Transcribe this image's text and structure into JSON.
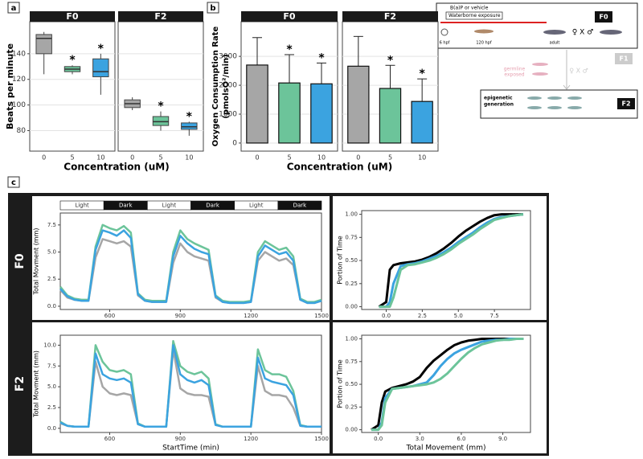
{
  "chart_data": [
    {
      "type": "box",
      "panel_label": "a",
      "facet": "F0",
      "ylabel": "Beats per minute",
      "xlabel": "Concentration (uM)",
      "categories": [
        "0",
        "5",
        "10"
      ],
      "colors": [
        "#a6a6a6",
        "#6cc49a",
        "#3ba3e0"
      ],
      "stats": [
        {
          "min": 124,
          "q1": 140,
          "median": 152,
          "q3": 155,
          "max": 157
        },
        {
          "min": 124,
          "q1": 126,
          "median": 128,
          "q3": 130,
          "max": 131
        },
        {
          "min": 108,
          "q1": 122,
          "median": 126,
          "q3": 136,
          "max": 140
        }
      ],
      "significance": [
        {
          "category": "5",
          "label": "*"
        },
        {
          "category": "10",
          "label": "*"
        }
      ],
      "ylim": [
        64,
        165
      ],
      "yticks": [
        80,
        100,
        120,
        140
      ],
      "grid": true
    },
    {
      "type": "box",
      "facet": "F2",
      "categories": [
        "0",
        "5",
        "10"
      ],
      "colors": [
        "#a6a6a6",
        "#6cc49a",
        "#3ba3e0"
      ],
      "stats": [
        {
          "min": 96,
          "q1": 98,
          "median": 101,
          "q3": 104,
          "max": 106
        },
        {
          "min": 80,
          "q1": 84,
          "median": 87,
          "q3": 91,
          "max": 95
        },
        {
          "min": 76,
          "q1": 81,
          "median": 83,
          "q3": 86,
          "max": 87
        }
      ],
      "significance": [
        {
          "category": "5",
          "label": "*"
        },
        {
          "category": "10",
          "label": "*"
        }
      ],
      "ylim": [
        64,
        165
      ],
      "grid": true
    },
    {
      "type": "bar",
      "panel_label": "b",
      "facet": "F0",
      "ylabel": [
        "Oxygen Consumption Rate",
        "(pmolsO²/min)"
      ],
      "xlabel": "Concentration (uM)",
      "categories": [
        "0",
        "5",
        "10"
      ],
      "colors": [
        "#a6a6a6",
        "#6cc49a",
        "#3ba3e0"
      ],
      "values": [
        2700,
        2080,
        2050
      ],
      "errors": [
        950,
        980,
        720
      ],
      "significance": [
        {
          "category": "5",
          "label": "*"
        },
        {
          "category": "10",
          "label": "*"
        }
      ],
      "ylim": [
        -280,
        4200
      ],
      "yticks": [
        0,
        1000,
        2000,
        3000
      ],
      "grid": true
    },
    {
      "type": "bar",
      "facet": "F2",
      "categories": [
        "0",
        "5",
        "10"
      ],
      "colors": [
        "#a6a6a6",
        "#6cc49a",
        "#3ba3e0"
      ],
      "values": [
        2660,
        1890,
        1440
      ],
      "errors": [
        1030,
        800,
        780
      ],
      "significance": [
        {
          "category": "5",
          "label": "*"
        },
        {
          "category": "10",
          "label": "*"
        }
      ],
      "ylim": [
        -280,
        4200
      ],
      "grid": true
    },
    {
      "type": "line",
      "panel_label": "c",
      "row": "F0",
      "phases": [
        "Light",
        "Dark",
        "Light",
        "Dark",
        "Light",
        "Dark"
      ],
      "ylabel": "Total Movment (mm)",
      "x": [
        390,
        420,
        450,
        480,
        510,
        540,
        570,
        600,
        630,
        660,
        690,
        720,
        750,
        780,
        810,
        840,
        870,
        900,
        930,
        960,
        990,
        1020,
        1050,
        1080,
        1110,
        1140,
        1170,
        1200,
        1230,
        1260,
        1290,
        1320,
        1350,
        1380,
        1410,
        1440,
        1470,
        1500
      ],
      "series": [
        {
          "color": "#a6a6a6",
          "values": [
            1.5,
            0.8,
            0.6,
            0.5,
            0.5,
            4.5,
            6.2,
            6.0,
            5.8,
            6.0,
            5.5,
            1.0,
            0.5,
            0.4,
            0.4,
            0.4,
            4.0,
            5.8,
            5.0,
            4.6,
            4.4,
            4.2,
            0.8,
            0.4,
            0.3,
            0.3,
            0.3,
            0.4,
            4.2,
            5.0,
            4.6,
            4.2,
            4.4,
            3.8,
            0.6,
            0.3,
            0.3,
            0.5
          ]
        },
        {
          "color": "#6cc49a",
          "values": [
            1.8,
            1.0,
            0.7,
            0.6,
            0.6,
            5.5,
            7.5,
            7.2,
            7.0,
            7.4,
            6.8,
            1.2,
            0.6,
            0.5,
            0.5,
            0.5,
            5.0,
            7.0,
            6.2,
            5.8,
            5.5,
            5.2,
            1.0,
            0.5,
            0.4,
            0.4,
            0.4,
            0.5,
            5.0,
            6.0,
            5.6,
            5.2,
            5.4,
            4.6,
            0.7,
            0.4,
            0.4,
            0.6
          ]
        },
        {
          "color": "#3ba3e0",
          "values": [
            1.6,
            0.9,
            0.6,
            0.5,
            0.5,
            5.2,
            7.0,
            6.8,
            6.5,
            7.0,
            6.3,
            1.1,
            0.5,
            0.4,
            0.4,
            0.4,
            4.6,
            6.5,
            5.8,
            5.3,
            5.0,
            4.8,
            0.9,
            0.4,
            0.3,
            0.3,
            0.3,
            0.4,
            4.6,
            5.6,
            5.2,
            4.8,
            5.0,
            4.2,
            0.6,
            0.3,
            0.3,
            0.5
          ]
        }
      ],
      "xlim": [
        390,
        1500
      ],
      "xticks": [
        600,
        900,
        1200,
        1500
      ],
      "ylim": [
        -0.3,
        8.6
      ],
      "yticks": [
        {
          "value": 0,
          "label": "0.0"
        },
        2.5,
        {
          "value": 5,
          "label": "5.0"
        },
        7.5
      ]
    },
    {
      "type": "ecdf",
      "ylabel": "Portion of Time",
      "x": [
        -0.5,
        0,
        0.25,
        0.5,
        1,
        1.5,
        2,
        2.5,
        3,
        3.5,
        4,
        4.5,
        5,
        5.5,
        6,
        6.5,
        7,
        7.5,
        8,
        8.5,
        9,
        9.5
      ],
      "series": [
        {
          "color": "#000000",
          "values": [
            0,
            0.05,
            0.4,
            0.45,
            0.47,
            0.48,
            0.49,
            0.51,
            0.54,
            0.58,
            0.63,
            0.69,
            0.76,
            0.82,
            0.87,
            0.92,
            0.96,
            0.99,
            1.0,
            1.0,
            1.0,
            1.0
          ]
        },
        {
          "color": "#3ba3e0",
          "values": [
            0,
            0,
            0.05,
            0.25,
            0.44,
            0.46,
            0.47,
            0.49,
            0.52,
            0.55,
            0.59,
            0.64,
            0.7,
            0.75,
            0.8,
            0.86,
            0.91,
            0.95,
            0.97,
            0.98,
            0.99,
            1.0
          ]
        },
        {
          "color": "#6cc49a",
          "values": [
            0,
            0,
            0,
            0.1,
            0.4,
            0.45,
            0.46,
            0.48,
            0.5,
            0.53,
            0.57,
            0.62,
            0.68,
            0.73,
            0.78,
            0.84,
            0.89,
            0.94,
            0.96,
            0.98,
            0.99,
            1.0
          ]
        }
      ],
      "xlim": [
        -1.7,
        10
      ],
      "xticks": [
        {
          "value": 0,
          "label": "0.0"
        },
        2.5,
        {
          "value": 5,
          "label": "5.0"
        },
        7.5
      ],
      "ylim": [
        -0.03,
        1.04
      ],
      "yticks": [
        {
          "value": 0,
          "label": "0.00"
        },
        0.25,
        {
          "value": 0.5,
          "label": "0.50"
        },
        0.75,
        {
          "value": 1,
          "label": "1.00"
        }
      ]
    },
    {
      "type": "line",
      "row": "F2",
      "ylabel": "Total Movment (mm)",
      "xlabel": "StartTime (min)",
      "x": [
        390,
        420,
        450,
        480,
        510,
        540,
        570,
        600,
        630,
        660,
        690,
        720,
        750,
        780,
        810,
        840,
        870,
        900,
        930,
        960,
        990,
        1020,
        1050,
        1080,
        1110,
        1140,
        1170,
        1200,
        1230,
        1260,
        1290,
        1320,
        1350,
        1380,
        1410,
        1440,
        1470,
        1500
      ],
      "series": [
        {
          "color": "#a6a6a6",
          "values": [
            0.6,
            0.3,
            0.2,
            0.2,
            0.2,
            8.0,
            5.0,
            4.2,
            4.0,
            4.2,
            4.0,
            0.5,
            0.2,
            0.2,
            0.2,
            0.2,
            9.5,
            4.8,
            4.2,
            4.0,
            4.0,
            3.8,
            0.4,
            0.2,
            0.2,
            0.2,
            0.2,
            0.2,
            7.5,
            4.5,
            4.0,
            4.0,
            3.8,
            2.5,
            0.3,
            0.2,
            0.2,
            0.2
          ]
        },
        {
          "color": "#6cc49a",
          "values": [
            0.8,
            0.3,
            0.2,
            0.2,
            0.2,
            10.0,
            8.0,
            7.0,
            6.8,
            7.0,
            6.5,
            0.6,
            0.2,
            0.2,
            0.2,
            0.2,
            10.5,
            7.5,
            6.8,
            6.5,
            6.8,
            6.0,
            0.5,
            0.2,
            0.2,
            0.2,
            0.2,
            0.2,
            9.5,
            7.0,
            6.5,
            6.5,
            6.2,
            4.5,
            0.4,
            0.2,
            0.2,
            0.2
          ]
        },
        {
          "color": "#3ba3e0",
          "values": [
            0.7,
            0.3,
            0.2,
            0.2,
            0.2,
            9.0,
            6.5,
            6.0,
            5.8,
            6.0,
            5.5,
            0.5,
            0.2,
            0.2,
            0.2,
            0.2,
            10.0,
            6.5,
            5.8,
            5.5,
            5.8,
            5.2,
            0.4,
            0.2,
            0.2,
            0.2,
            0.2,
            0.2,
            8.5,
            6.0,
            5.6,
            5.4,
            5.2,
            4.0,
            0.3,
            0.2,
            0.2,
            0.2
          ]
        }
      ],
      "xlim": [
        390,
        1500
      ],
      "xticks": [
        600,
        900,
        1200,
        1500
      ],
      "ylim": [
        -0.5,
        11.2
      ],
      "yticks": [
        {
          "value": 0,
          "label": "0.0"
        },
        2.5,
        {
          "value": 5,
          "label": "5.0"
        },
        7.5,
        {
          "value": 10,
          "label": "10.0"
        }
      ]
    },
    {
      "type": "ecdf",
      "ylabel": "Portion of Time",
      "xlabel": "Total Movement (mm)",
      "x": [
        -0.5,
        0,
        0.25,
        0.5,
        1,
        1.5,
        2,
        2.5,
        3,
        3.5,
        4,
        4.5,
        5,
        5.5,
        6,
        6.5,
        7,
        7.5,
        8,
        8.5,
        9,
        9.5,
        10,
        10.5
      ],
      "series": [
        {
          "color": "#000000",
          "values": [
            0,
            0.05,
            0.3,
            0.42,
            0.46,
            0.48,
            0.5,
            0.53,
            0.58,
            0.68,
            0.76,
            0.82,
            0.88,
            0.93,
            0.96,
            0.98,
            0.99,
            1.0,
            1.0,
            1.0,
            1.0,
            1.0,
            1.0,
            1.0
          ]
        },
        {
          "color": "#3ba3e0",
          "values": [
            0,
            0,
            0.08,
            0.35,
            0.45,
            0.46,
            0.47,
            0.48,
            0.5,
            0.52,
            0.6,
            0.7,
            0.78,
            0.84,
            0.88,
            0.91,
            0.94,
            0.97,
            0.98,
            0.99,
            0.99,
            1.0,
            1.0,
            1.0
          ]
        },
        {
          "color": "#6cc49a",
          "values": [
            0,
            0,
            0.05,
            0.3,
            0.45,
            0.46,
            0.47,
            0.48,
            0.49,
            0.5,
            0.52,
            0.56,
            0.62,
            0.7,
            0.78,
            0.85,
            0.9,
            0.94,
            0.96,
            0.98,
            0.99,
            0.99,
            1.0,
            1.0
          ]
        }
      ],
      "xlim": [
        -1.2,
        11
      ],
      "xticks": [
        {
          "value": 0,
          "label": "0.0"
        },
        {
          "value": 3,
          "label": "3.0"
        },
        {
          "value": 6,
          "label": "6.0"
        },
        {
          "value": 9,
          "label": "9.0"
        }
      ],
      "ylim": [
        -0.03,
        1.04
      ],
      "yticks": [
        {
          "value": 0,
          "label": "0.00"
        },
        0.25,
        {
          "value": 0.5,
          "label": "0.50"
        },
        0.75,
        {
          "value": 1,
          "label": "1.00"
        }
      ]
    }
  ],
  "schematic": {
    "exposure": "B(a)P or vehicle",
    "method": "Waterborne exposure",
    "stages": [
      "6 hpf",
      "120 hpf",
      "adult"
    ],
    "cross": "♀ X ♂",
    "generations": [
      "F0",
      "F1",
      "F2"
    ],
    "f1_note": [
      "germline",
      "exposed"
    ],
    "f2_note": [
      "epigenetic",
      "generation"
    ]
  }
}
